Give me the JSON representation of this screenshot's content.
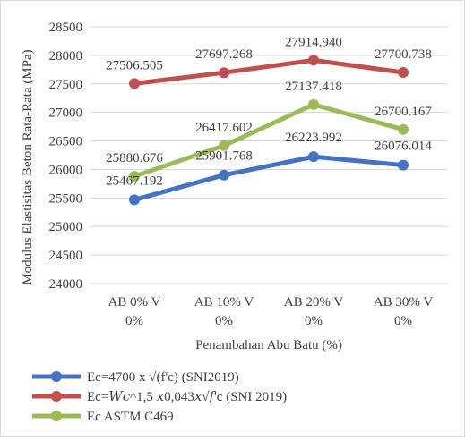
{
  "chart_data": {
    "type": "line",
    "title": "",
    "xlabel": "Penambahan Abu Batu (%)",
    "ylabel": "Modulus Elastisitas Beton Rata-Rata (MPa)",
    "categories": [
      [
        "AB 0% V",
        "0%"
      ],
      [
        "AB 10% V",
        "0%"
      ],
      [
        "AB 20% V",
        "0%"
      ],
      [
        "AB 30% V",
        "0%"
      ]
    ],
    "ylim": [
      24000,
      28500
    ],
    "yticks": [
      "24000",
      "24500",
      "25000",
      "25500",
      "26000",
      "26500",
      "27000",
      "27500",
      "28000",
      "28500"
    ],
    "grid": true,
    "legend_position": "bottom-left",
    "series": [
      {
        "name": "Ec=4700 x √(f'c) (SNI2019)",
        "color": "#4472c4",
        "values": [
          25467.192,
          25901.768,
          26223.992,
          26076.014
        ],
        "labels": [
          "25467.192",
          "25901.768",
          "26223.992",
          "26076.014"
        ]
      },
      {
        "name": "Ec=𝑊𝑐^1,5 𝑥0,043𝑥√𝑓'c (SNI 2019)",
        "color": "#c0504d",
        "values": [
          27506.505,
          27697.268,
          27914.94,
          27700.738
        ],
        "labels": [
          "27506.505",
          "27697.268",
          "27914.940",
          "27700.738"
        ]
      },
      {
        "name": "Ec ASTM C469",
        "color": "#9bbb59",
        "values": [
          25880.676,
          26417.602,
          27137.418,
          26700.167
        ],
        "labels": [
          "25880.676",
          "26417.602",
          "27137.418",
          "26700.167"
        ]
      }
    ]
  }
}
